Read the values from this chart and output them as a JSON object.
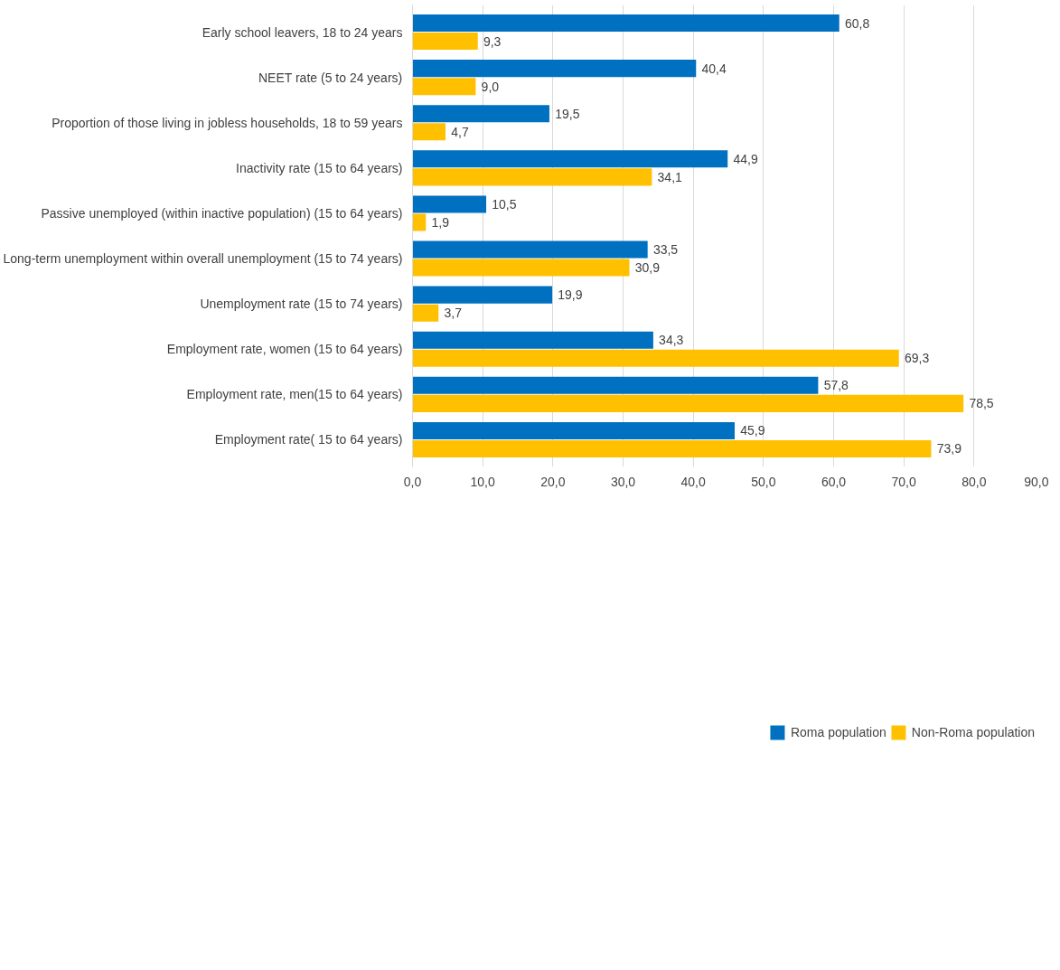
{
  "chart_data": {
    "type": "bar",
    "orientation": "horizontal",
    "categories": [
      "Early school leavers, 18 to 24 years",
      "NEET rate (5 to 24 years)",
      "Proportion of those living in jobless households, 18 to 59 years",
      "Inactivity rate (15 to 64 years)",
      "Passive unemployed (within inactive population) (15 to 64 years)",
      "Long-term unemployment within overall unemployment (15 to 74 years)",
      "Unemployment rate (15 to 74 years)",
      "Employment rate, women (15 to 64 years)",
      "Employment rate, men(15 to 64 years)",
      "Employment rate( 15 to 64 years)"
    ],
    "series": [
      {
        "name": "Roma population",
        "color": "#0070c0",
        "values": [
          60.8,
          40.4,
          19.5,
          44.9,
          10.5,
          33.5,
          19.9,
          34.3,
          57.8,
          45.9
        ],
        "value_labels": [
          "60,8",
          "40,4",
          "19,5",
          "44,9",
          "10,5",
          "33,5",
          "19,9",
          "34,3",
          "57,8",
          "45,9"
        ]
      },
      {
        "name": "Non-Roma population",
        "color": "#ffc000",
        "values": [
          9.3,
          9.0,
          4.7,
          34.1,
          1.9,
          30.9,
          3.7,
          69.3,
          78.5,
          73.9
        ],
        "value_labels": [
          "9,3",
          "9,0",
          "4,7",
          "34,1",
          "1,9",
          "30,9",
          "3,7",
          "69,3",
          "78,5",
          "73,9"
        ]
      }
    ],
    "xlim": [
      0,
      90
    ],
    "xticks": [
      {
        "value": 0,
        "label": "0,0"
      },
      {
        "value": 10,
        "label": "10,0"
      },
      {
        "value": 20,
        "label": "20,0"
      },
      {
        "value": 30,
        "label": "30,0"
      },
      {
        "value": 40,
        "label": "40,0"
      },
      {
        "value": 50,
        "label": "50,0"
      },
      {
        "value": 60,
        "label": "60,0"
      },
      {
        "value": 70,
        "label": "70,0"
      },
      {
        "value": 80,
        "label": "80,0"
      },
      {
        "value": 90,
        "label": "90,0"
      }
    ],
    "grid": "x",
    "legend": "bottom"
  }
}
